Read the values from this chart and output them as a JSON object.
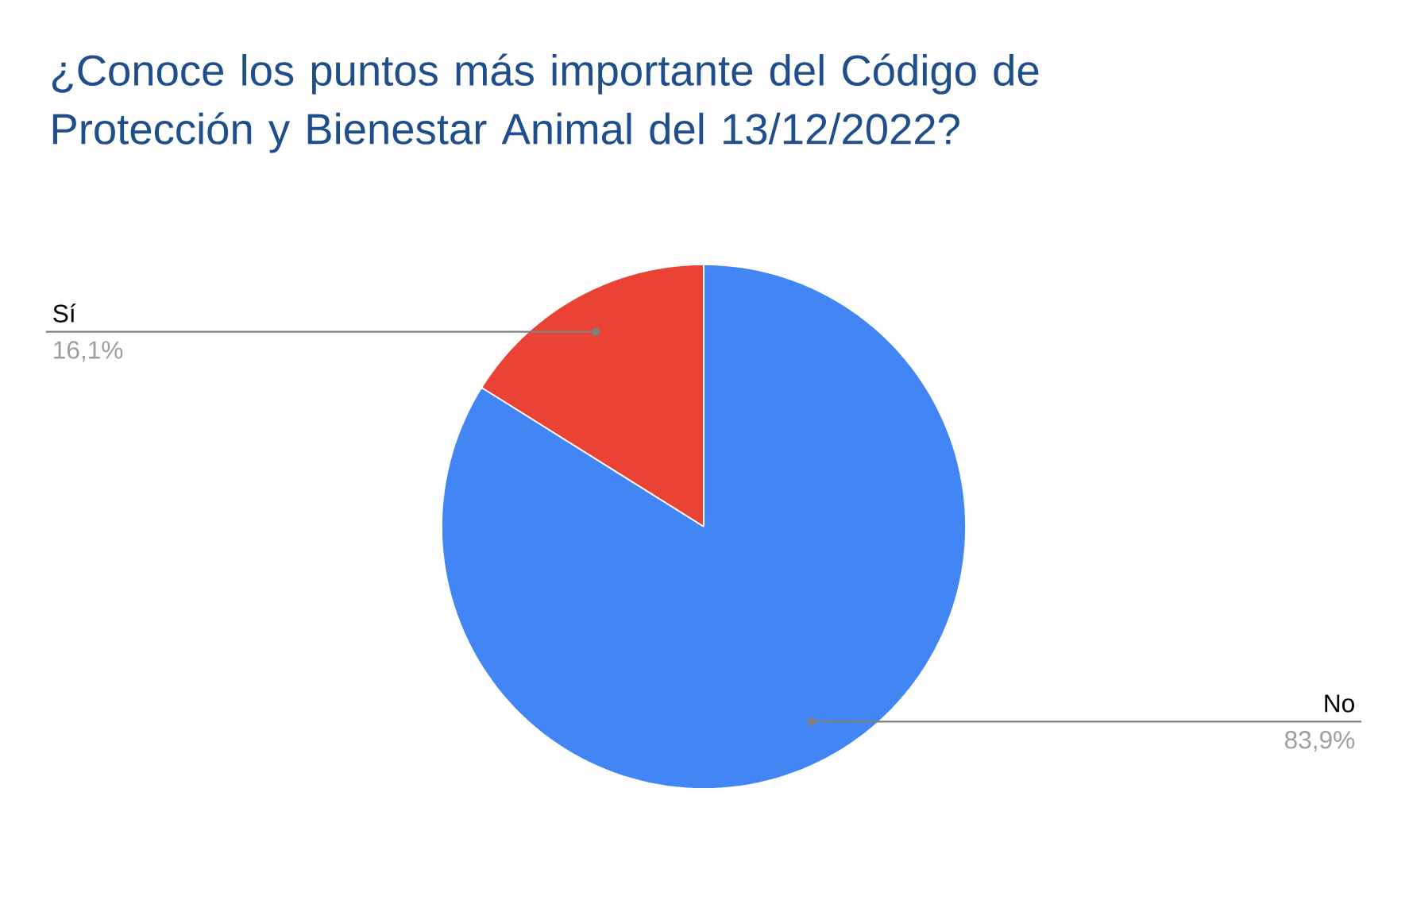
{
  "chart_data": {
    "type": "pie",
    "title": "¿Conoce los puntos más importante del Código de Protección y Bienestar Animal del 13/12/2022?",
    "categories": [
      "Sí",
      "No"
    ],
    "values": [
      16.1,
      83.9
    ],
    "colors": [
      "#ea4335",
      "#4285f4"
    ],
    "value_labels": [
      "16,1%",
      "83,9%"
    ]
  }
}
